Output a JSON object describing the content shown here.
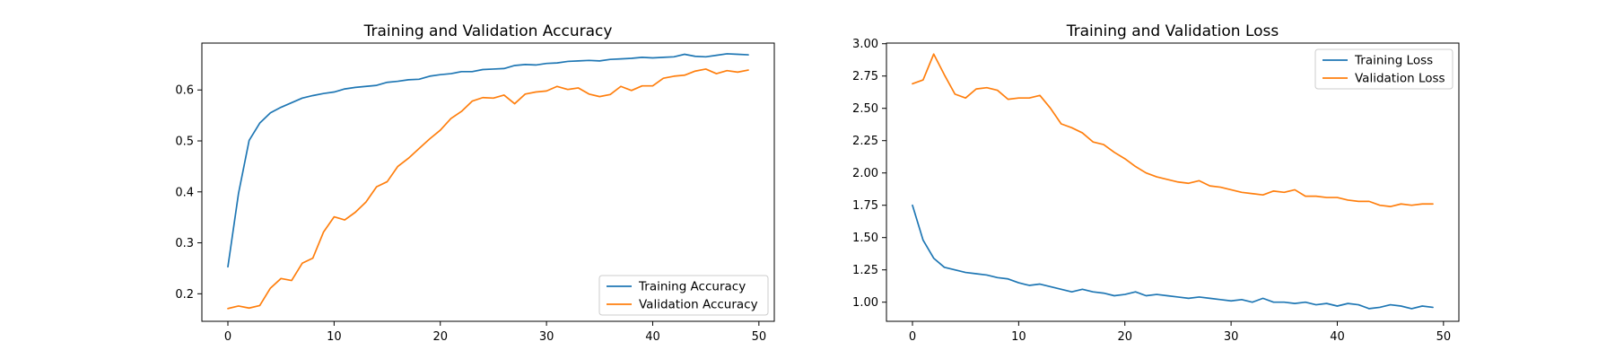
{
  "chart_data": [
    {
      "type": "line",
      "title": "Training and Validation Accuracy",
      "xlabel": "",
      "ylabel": "",
      "xlim": [
        -2.45,
        51.45
      ],
      "ylim": [
        0.146,
        0.692
      ],
      "xticks": [
        0,
        10,
        20,
        30,
        40,
        50
      ],
      "yticks": [
        0.2,
        0.3,
        0.4,
        0.5,
        0.6
      ],
      "ytick_format": 1,
      "grid": false,
      "legend_position": "lower-right",
      "x": [
        0,
        1,
        2,
        3,
        4,
        5,
        6,
        7,
        8,
        9,
        10,
        11,
        12,
        13,
        14,
        15,
        16,
        17,
        18,
        19,
        20,
        21,
        22,
        23,
        24,
        25,
        26,
        27,
        28,
        29,
        30,
        31,
        32,
        33,
        34,
        35,
        36,
        37,
        38,
        39,
        40,
        41,
        42,
        43,
        44,
        45,
        46,
        47,
        48,
        49
      ],
      "series": [
        {
          "name": "Training Accuracy",
          "color": "#1f77b4",
          "values": [
            0.253,
            0.397,
            0.501,
            0.535,
            0.555,
            0.566,
            0.575,
            0.584,
            0.589,
            0.593,
            0.596,
            0.602,
            0.605,
            0.607,
            0.609,
            0.615,
            0.617,
            0.62,
            0.621,
            0.627,
            0.63,
            0.632,
            0.636,
            0.636,
            0.64,
            0.641,
            0.642,
            0.648,
            0.65,
            0.649,
            0.652,
            0.653,
            0.656,
            0.657,
            0.658,
            0.657,
            0.66,
            0.661,
            0.662,
            0.664,
            0.663,
            0.664,
            0.665,
            0.67,
            0.666,
            0.665,
            0.668,
            0.671,
            0.67,
            0.669
          ]
        },
        {
          "name": "Validation Accuracy",
          "color": "#ff7f0e",
          "values": [
            0.171,
            0.176,
            0.172,
            0.177,
            0.211,
            0.23,
            0.226,
            0.26,
            0.27,
            0.321,
            0.351,
            0.345,
            0.36,
            0.38,
            0.41,
            0.42,
            0.45,
            0.466,
            0.485,
            0.504,
            0.521,
            0.544,
            0.558,
            0.578,
            0.585,
            0.584,
            0.59,
            0.573,
            0.592,
            0.596,
            0.598,
            0.607,
            0.601,
            0.604,
            0.592,
            0.587,
            0.591,
            0.607,
            0.599,
            0.608,
            0.608,
            0.623,
            0.627,
            0.629,
            0.637,
            0.641,
            0.632,
            0.638,
            0.635,
            0.639
          ]
        }
      ]
    },
    {
      "type": "line",
      "title": "Training and Validation Loss",
      "xlabel": "",
      "ylabel": "",
      "xlim": [
        -2.45,
        51.45
      ],
      "ylim": [
        0.852,
        3.005
      ],
      "xticks": [
        0,
        10,
        20,
        30,
        40,
        50
      ],
      "yticks": [
        1.0,
        1.25,
        1.5,
        1.75,
        2.0,
        2.25,
        2.5,
        2.75,
        3.0
      ],
      "ytick_format": 2,
      "grid": false,
      "legend_position": "upper-right",
      "x": [
        0,
        1,
        2,
        3,
        4,
        5,
        6,
        7,
        8,
        9,
        10,
        11,
        12,
        13,
        14,
        15,
        16,
        17,
        18,
        19,
        20,
        21,
        22,
        23,
        24,
        25,
        26,
        27,
        28,
        29,
        30,
        31,
        32,
        33,
        34,
        35,
        36,
        37,
        38,
        39,
        40,
        41,
        42,
        43,
        44,
        45,
        46,
        47,
        48,
        49
      ],
      "series": [
        {
          "name": "Training Loss",
          "color": "#1f77b4",
          "values": [
            1.75,
            1.48,
            1.34,
            1.27,
            1.25,
            1.23,
            1.22,
            1.21,
            1.19,
            1.18,
            1.15,
            1.13,
            1.14,
            1.12,
            1.1,
            1.08,
            1.1,
            1.08,
            1.07,
            1.05,
            1.06,
            1.08,
            1.05,
            1.06,
            1.05,
            1.04,
            1.03,
            1.04,
            1.03,
            1.02,
            1.01,
            1.02,
            1.0,
            1.03,
            1.0,
            1.0,
            0.99,
            1.0,
            0.98,
            0.99,
            0.97,
            0.99,
            0.98,
            0.95,
            0.96,
            0.98,
            0.97,
            0.95,
            0.97,
            0.96
          ]
        },
        {
          "name": "Validation Loss",
          "color": "#ff7f0e",
          "values": [
            2.69,
            2.72,
            2.92,
            2.76,
            2.61,
            2.58,
            2.65,
            2.66,
            2.64,
            2.57,
            2.58,
            2.58,
            2.6,
            2.5,
            2.38,
            2.35,
            2.31,
            2.24,
            2.22,
            2.16,
            2.11,
            2.05,
            2.0,
            1.97,
            1.95,
            1.93,
            1.92,
            1.94,
            1.9,
            1.89,
            1.87,
            1.85,
            1.84,
            1.83,
            1.86,
            1.85,
            1.87,
            1.82,
            1.82,
            1.81,
            1.81,
            1.79,
            1.78,
            1.78,
            1.75,
            1.74,
            1.76,
            1.75,
            1.76,
            1.76
          ]
        }
      ]
    }
  ]
}
